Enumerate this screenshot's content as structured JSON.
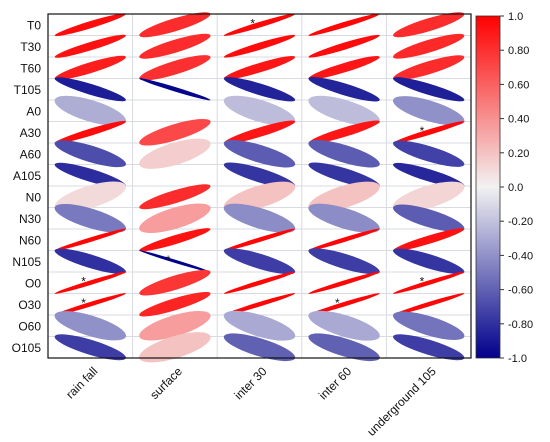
{
  "chart_data": {
    "type": "heatmap",
    "glyph": "ellipse",
    "rows": [
      "T0",
      "T30",
      "T60",
      "T105",
      "A0",
      "A30",
      "A60",
      "A105",
      "N0",
      "N30",
      "N60",
      "N105",
      "O0",
      "O30",
      "O60",
      "O105"
    ],
    "columns": [
      "rain fall",
      "surface",
      "inter 30",
      "inter 60",
      "underground 105"
    ],
    "values": [
      [
        0.95,
        0.82,
        0.97,
        0.97,
        0.82
      ],
      [
        0.93,
        0.82,
        0.95,
        0.95,
        0.83
      ],
      [
        0.88,
        0.8,
        0.91,
        0.91,
        0.82
      ],
      [
        -0.88,
        -0.98,
        -0.86,
        -0.85,
        -0.87
      ],
      [
        -0.28,
        null,
        -0.22,
        -0.22,
        -0.4
      ],
      [
        0.95,
        0.7,
        0.91,
        0.91,
        0.97
      ],
      [
        -0.68,
        0.15,
        -0.62,
        -0.62,
        -0.73
      ],
      [
        -0.82,
        null,
        -0.78,
        -0.78,
        -0.84
      ],
      [
        0.1,
        0.82,
        0.2,
        0.2,
        0.12
      ],
      [
        -0.5,
        0.35,
        -0.42,
        -0.42,
        -0.62
      ],
      [
        0.98,
        0.92,
        0.98,
        0.98,
        0.93
      ],
      [
        -0.8,
        -0.99,
        -0.75,
        -0.75,
        -0.78
      ],
      [
        0.98,
        0.78,
        0.98,
        0.98,
        0.98
      ],
      [
        0.98,
        0.85,
        0.98,
        0.98,
        0.98
      ],
      [
        -0.4,
        0.35,
        -0.3,
        -0.3,
        -0.52
      ],
      [
        -0.75,
        0.2,
        -0.6,
        -0.6,
        -0.75
      ]
    ],
    "significance_markers": [
      {
        "row": "T0",
        "column": "inter 30",
        "label": "*"
      },
      {
        "row": "A30",
        "column": "underground 105",
        "label": "*"
      },
      {
        "row": "N105",
        "column": "surface",
        "label": "*"
      },
      {
        "row": "O0",
        "column": "rain fall",
        "label": "*"
      },
      {
        "row": "O0",
        "column": "underground 105",
        "label": "*"
      },
      {
        "row": "O30",
        "column": "rain fall",
        "label": "*"
      },
      {
        "row": "O30",
        "column": "inter 60",
        "label": "*"
      }
    ],
    "colorbar": {
      "range": [
        -1.0,
        1.0
      ],
      "ticks": [
        "1.0",
        "0.80",
        "0.60",
        "0.40",
        "0.20",
        "0.0",
        "-0.20",
        "-0.40",
        "-0.60",
        "-0.80",
        "-1.0"
      ],
      "colors": {
        "negative": "#00008b",
        "zero": "#f2f2f2",
        "positive": "#ff0000"
      }
    },
    "grid": true,
    "title": "",
    "xlabel": "",
    "ylabel": ""
  }
}
